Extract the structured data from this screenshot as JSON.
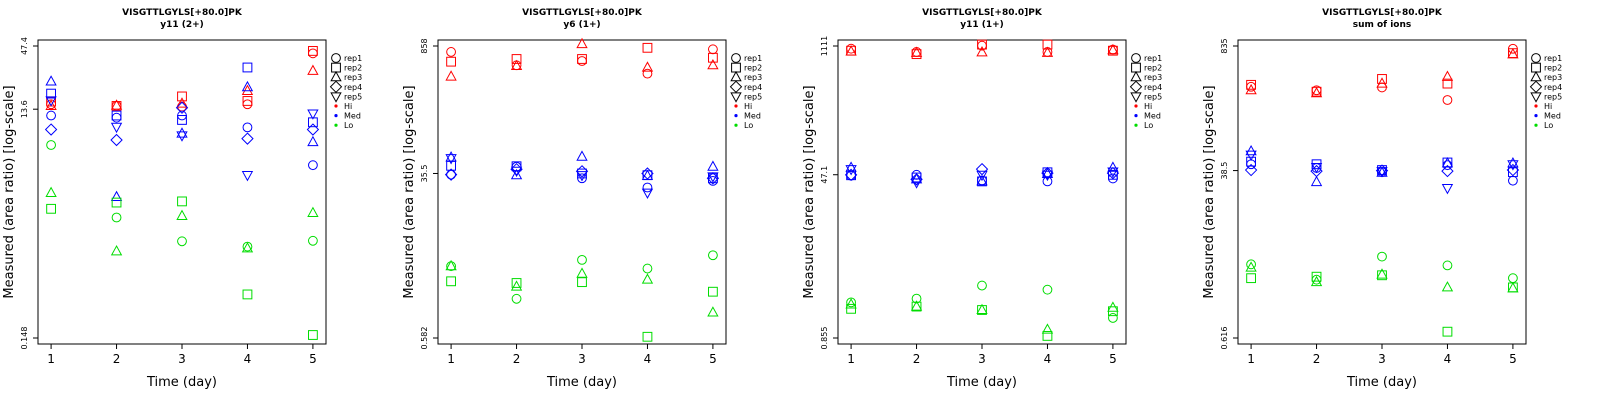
{
  "chart_data": [
    {
      "type": "scatter",
      "title": "VISGTTLGYLS[+80.0]PK",
      "subtitle": "y11 (2+)",
      "xlabel": "Time (day)",
      "ylabel": "Measured (area ratio) [log-scale]",
      "log_y": true,
      "ylim": [
        0.148,
        47.4
      ],
      "yticks": [
        "0.148",
        "13.6",
        "47.4"
      ],
      "xticks": [
        "1",
        "2",
        "3",
        "4",
        "5"
      ],
      "xlim": [
        0.8,
        5.2
      ],
      "legend": [
        "rep1",
        "rep2",
        "rep3",
        "rep4",
        "rep5",
        "Hi",
        "Med",
        "Lo"
      ],
      "legend_position": "right",
      "grid": false,
      "colors": {
        "Hi": "#ff0000",
        "Med": "#0000ff",
        "Lo": "#00dd00"
      },
      "series": [
        {
          "level": "Hi",
          "rep": "rep1",
          "x": [
            1,
            2,
            3,
            4,
            5
          ],
          "y": [
            15.0,
            14.5,
            14.3,
            15.0,
            41.0
          ]
        },
        {
          "level": "Hi",
          "rep": "rep2",
          "x": [
            1,
            2,
            3,
            4,
            5
          ],
          "y": [
            15.8,
            14.5,
            17.5,
            16.0,
            43.0
          ]
        },
        {
          "level": "Hi",
          "rep": "rep3",
          "x": [
            1,
            2,
            3,
            4,
            5
          ],
          "y": [
            14.5,
            14.6,
            15.2,
            19.5,
            29.0
          ]
        },
        {
          "level": "Med",
          "rep": "rep1",
          "x": [
            1,
            2,
            3,
            4,
            5
          ],
          "y": [
            12.0,
            11.5,
            12.0,
            9.5,
            4.5
          ]
        },
        {
          "level": "Med",
          "rep": "rep2",
          "x": [
            1,
            2,
            3,
            4,
            5
          ],
          "y": [
            18.5,
            12.0,
            11.0,
            31.0,
            10.5
          ]
        },
        {
          "level": "Med",
          "rep": "rep3",
          "x": [
            1,
            2,
            3,
            4,
            5
          ],
          "y": [
            23.5,
            2.4,
            8.4,
            21.0,
            7.1
          ]
        },
        {
          "level": "Med",
          "rep": "rep4",
          "x": [
            1,
            2,
            3,
            4,
            5
          ],
          "y": [
            9.1,
            7.4,
            14.0,
            7.6,
            9.1
          ]
        },
        {
          "level": "Med",
          "rep": "rep5",
          "x": [
            1,
            2,
            3,
            4,
            5
          ],
          "y": [
            16.2,
            9.6,
            8.1,
            3.7,
            12.5
          ]
        },
        {
          "level": "Lo",
          "rep": "rep1",
          "x": [
            1,
            2,
            3,
            4,
            5
          ],
          "y": [
            6.7,
            1.6,
            1.0,
            0.9,
            1.01
          ]
        },
        {
          "level": "Lo",
          "rep": "rep2",
          "x": [
            1,
            2,
            3,
            4,
            5
          ],
          "y": [
            1.9,
            2.15,
            2.2,
            0.35,
            0.157
          ]
        },
        {
          "level": "Lo",
          "rep": "rep3",
          "x": [
            1,
            2,
            3,
            4,
            5
          ],
          "y": [
            2.6,
            0.82,
            1.65,
            0.87,
            1.75
          ]
        }
      ]
    },
    {
      "type": "scatter",
      "title": "VISGTTLGYLS[+80.0]PK",
      "subtitle": "y6 (1+)",
      "xlabel": "Time (day)",
      "ylabel": "Measured (area ratio) [log-scale]",
      "log_y": true,
      "ylim": [
        0.582,
        858
      ],
      "yticks": [
        "0.582",
        "35.5",
        "858"
      ],
      "xticks": [
        "1",
        "2",
        "3",
        "4",
        "5"
      ],
      "xlim": [
        0.8,
        5.2
      ],
      "legend": [
        "rep1",
        "rep2",
        "rep3",
        "rep4",
        "rep5",
        "Hi",
        "Med",
        "Lo"
      ],
      "legend_position": "right",
      "grid": false,
      "colors": {
        "Hi": "#ff0000",
        "Med": "#0000ff",
        "Lo": "#00dd00"
      },
      "series": [
        {
          "level": "Hi",
          "rep": "rep1",
          "x": [
            1,
            2,
            3,
            4,
            5
          ],
          "y": [
            740,
            530,
            590,
            430,
            790
          ]
        },
        {
          "level": "Hi",
          "rep": "rep2",
          "x": [
            1,
            2,
            3,
            4,
            5
          ],
          "y": [
            580,
            620,
            620,
            820,
            640
          ]
        },
        {
          "level": "Hi",
          "rep": "rep3",
          "x": [
            1,
            2,
            3,
            4,
            5
          ],
          "y": [
            400,
            520,
            900,
            500,
            530
          ]
        },
        {
          "level": "Med",
          "rep": "rep1",
          "x": [
            1,
            2,
            3,
            4,
            5
          ],
          "y": [
            34.5,
            42.0,
            31.5,
            25.0,
            29.5
          ]
        },
        {
          "level": "Med",
          "rep": "rep2",
          "x": [
            1,
            2,
            3,
            4,
            5
          ],
          "y": [
            43.0,
            42.5,
            35.5,
            34.0,
            31.5
          ]
        },
        {
          "level": "Med",
          "rep": "rep3",
          "x": [
            1,
            2,
            3,
            4,
            5
          ],
          "y": [
            53.0,
            34.0,
            54.0,
            33.5,
            42.0
          ]
        },
        {
          "level": "Med",
          "rep": "rep4",
          "x": [
            1,
            2,
            3,
            4,
            5
          ],
          "y": [
            34.5,
            39.5,
            37.5,
            35.5,
            31.5
          ]
        },
        {
          "level": "Med",
          "rep": "rep5",
          "x": [
            1,
            2,
            3,
            4,
            5
          ],
          "y": [
            52.0,
            38.0,
            34.0,
            22.0,
            33.0
          ]
        },
        {
          "level": "Lo",
          "rep": "rep1",
          "x": [
            1,
            2,
            3,
            4,
            5
          ],
          "y": [
            3.5,
            1.55,
            4.1,
            3.3,
            4.6
          ]
        },
        {
          "level": "Lo",
          "rep": "rep2",
          "x": [
            1,
            2,
            3,
            4,
            5
          ],
          "y": [
            2.4,
            2.3,
            2.35,
            0.6,
            1.85
          ]
        },
        {
          "level": "Lo",
          "rep": "rep3",
          "x": [
            1,
            2,
            3,
            4,
            5
          ],
          "y": [
            3.5,
            2.1,
            2.9,
            2.5,
            1.1
          ]
        }
      ]
    },
    {
      "type": "scatter",
      "title": "VISGTTLGYLS[+80.0]PK",
      "subtitle": "y11 (1+)",
      "xlabel": "Time (day)",
      "ylabel": "Measured (area ratio) [log-scale]",
      "log_y": true,
      "ylim": [
        0.855,
        1111
      ],
      "yticks": [
        "0.855",
        "47.1",
        "1111"
      ],
      "xticks": [
        "1",
        "2",
        "3",
        "4",
        "5"
      ],
      "xlim": [
        0.8,
        5.2
      ],
      "legend": [
        "rep1",
        "rep2",
        "rep3",
        "rep4",
        "rep5",
        "Hi",
        "Med",
        "Lo"
      ],
      "legend_position": "right",
      "grid": false,
      "colors": {
        "Hi": "#ff0000",
        "Med": "#0000ff",
        "Lo": "#00dd00"
      },
      "series": [
        {
          "level": "Hi",
          "rep": "rep1",
          "x": [
            1,
            2,
            3,
            4,
            5
          ],
          "y": [
            1040,
            960,
            1120,
            960,
            1020
          ]
        },
        {
          "level": "Hi",
          "rep": "rep2",
          "x": [
            1,
            2,
            3,
            4,
            5
          ],
          "y": [
            990,
            910,
            1150,
            1150,
            990
          ]
        },
        {
          "level": "Hi",
          "rep": "rep3",
          "x": [
            1,
            2,
            3,
            4,
            5
          ],
          "y": [
            970,
            940,
            950,
            940,
            1000
          ]
        },
        {
          "level": "Med",
          "rep": "rep1",
          "x": [
            1,
            2,
            3,
            4,
            5
          ],
          "y": [
            46.0,
            47.0,
            41.0,
            40.0,
            43.0
          ]
        },
        {
          "level": "Med",
          "rep": "rep2",
          "x": [
            1,
            2,
            3,
            4,
            5
          ],
          "y": [
            46.5,
            44.0,
            40.0,
            50.0,
            47.0
          ]
        },
        {
          "level": "Med",
          "rep": "rep3",
          "x": [
            1,
            2,
            3,
            4,
            5
          ],
          "y": [
            56.0,
            42.0,
            40.0,
            48.0,
            56.0
          ]
        },
        {
          "level": "Med",
          "rep": "rep4",
          "x": [
            1,
            2,
            3,
            4,
            5
          ],
          "y": [
            47.0,
            42.0,
            54.0,
            49.0,
            49.0
          ]
        },
        {
          "level": "Med",
          "rep": "rep5",
          "x": [
            1,
            2,
            3,
            4,
            5
          ],
          "y": [
            54.0,
            39.0,
            47.0,
            47.0,
            51.0
          ]
        },
        {
          "level": "Lo",
          "rep": "rep1",
          "x": [
            1,
            2,
            3,
            4,
            5
          ],
          "y": [
            2.05,
            2.25,
            3.1,
            2.8,
            1.4
          ]
        },
        {
          "level": "Lo",
          "rep": "rep2",
          "x": [
            1,
            2,
            3,
            4,
            5
          ],
          "y": [
            1.75,
            1.85,
            1.7,
            0.9,
            1.65
          ]
        },
        {
          "level": "Lo",
          "rep": "rep3",
          "x": [
            1,
            2,
            3,
            4,
            5
          ],
          "y": [
            1.95,
            1.85,
            1.7,
            1.05,
            1.8
          ]
        }
      ]
    },
    {
      "type": "scatter",
      "title": "VISGTTLGYLS[+80.0]PK",
      "subtitle": "sum of ions",
      "xlabel": "Time (day)",
      "ylabel": "Measured (area ratio) [log-scale]",
      "log_y": true,
      "ylim": [
        0.616,
        835
      ],
      "yticks": [
        "0.616",
        "38.5",
        "835"
      ],
      "xticks": [
        "1",
        "2",
        "3",
        "4",
        "5"
      ],
      "xlim": [
        0.8,
        5.2
      ],
      "legend": [
        "rep1",
        "rep2",
        "rep3",
        "rep4",
        "rep5",
        "Hi",
        "Med",
        "Lo"
      ],
      "legend_position": "right",
      "grid": false,
      "colors": {
        "Hi": "#ff0000",
        "Med": "#0000ff",
        "Lo": "#00dd00"
      },
      "series": [
        {
          "level": "Hi",
          "rep": "rep1",
          "x": [
            1,
            2,
            3,
            4,
            5
          ],
          "y": [
            305,
            280,
            300,
            220,
            780
          ]
        },
        {
          "level": "Hi",
          "rep": "rep2",
          "x": [
            1,
            2,
            3,
            4,
            5
          ],
          "y": [
            320,
            270,
            370,
            330,
            700
          ]
        },
        {
          "level": "Hi",
          "rep": "rep3",
          "x": [
            1,
            2,
            3,
            4,
            5
          ],
          "y": [
            280,
            260,
            330,
            390,
            680
          ]
        },
        {
          "level": "Med",
          "rep": "rep1",
          "x": [
            1,
            2,
            3,
            4,
            5
          ],
          "y": [
            45.0,
            41.0,
            37.0,
            44.0,
            30.0
          ]
        },
        {
          "level": "Med",
          "rep": "rep2",
          "x": [
            1,
            2,
            3,
            4,
            5
          ],
          "y": [
            48.0,
            45.0,
            39.0,
            47.0,
            37.0
          ]
        },
        {
          "level": "Med",
          "rep": "rep3",
          "x": [
            1,
            2,
            3,
            4,
            5
          ],
          "y": [
            62.0,
            29.0,
            36.5,
            46.0,
            46.0
          ]
        },
        {
          "level": "Med",
          "rep": "rep4",
          "x": [
            1,
            2,
            3,
            4,
            5
          ],
          "y": [
            39.0,
            38.0,
            38.5,
            38.0,
            39.0
          ]
        },
        {
          "level": "Med",
          "rep": "rep5",
          "x": [
            1,
            2,
            3,
            4,
            5
          ],
          "y": [
            57.0,
            42.0,
            38.0,
            25.0,
            45.0
          ]
        },
        {
          "level": "Lo",
          "rep": "rep1",
          "x": [
            1,
            2,
            3,
            4,
            5
          ],
          "y": [
            3.8,
            2.6,
            4.6,
            3.7,
            2.7
          ]
        },
        {
          "level": "Lo",
          "rep": "rep2",
          "x": [
            1,
            2,
            3,
            4,
            5
          ],
          "y": [
            2.7,
            2.8,
            2.9,
            0.72,
            2.15
          ]
        },
        {
          "level": "Lo",
          "rep": "rep3",
          "x": [
            1,
            2,
            3,
            4,
            5
          ],
          "y": [
            3.5,
            2.45,
            2.95,
            2.15,
            2.1
          ]
        }
      ]
    }
  ]
}
